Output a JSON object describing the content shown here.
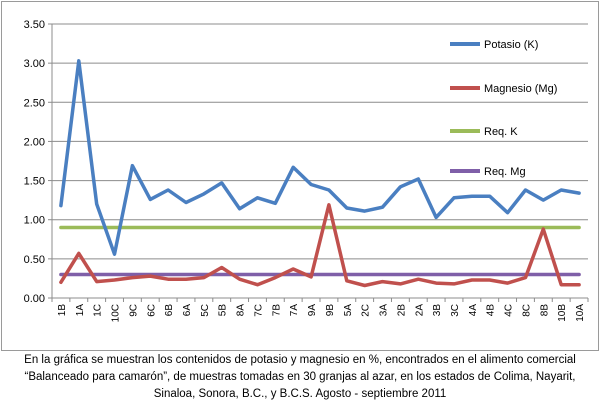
{
  "chart_data": {
    "type": "line",
    "categories": [
      "1B",
      "1A",
      "1C",
      "10C",
      "9C",
      "6C",
      "6B",
      "6A",
      "5C",
      "5B",
      "8A",
      "7C",
      "7B",
      "7A",
      "9A",
      "9B",
      "5A",
      "2C",
      "3A",
      "2B",
      "2A",
      "3B",
      "3C",
      "4A",
      "4B",
      "4C",
      "8C",
      "8B",
      "10B",
      "10A"
    ],
    "series": [
      {
        "name": "Potasio (K)",
        "color": "#4a7fc1",
        "values": [
          1.18,
          3.03,
          1.2,
          0.56,
          1.69,
          1.26,
          1.38,
          1.22,
          1.33,
          1.47,
          1.14,
          1.28,
          1.21,
          1.67,
          1.45,
          1.38,
          1.15,
          1.11,
          1.16,
          1.42,
          1.52,
          1.03,
          1.28,
          1.3,
          1.3,
          1.09,
          1.38,
          1.25,
          1.38,
          1.34
        ]
      },
      {
        "name": "Magnesio (Mg)",
        "color": "#c0504d",
        "values": [
          0.2,
          0.57,
          0.21,
          0.23,
          0.26,
          0.28,
          0.24,
          0.24,
          0.26,
          0.39,
          0.24,
          0.17,
          0.26,
          0.37,
          0.27,
          1.19,
          0.22,
          0.16,
          0.21,
          0.18,
          0.24,
          0.19,
          0.18,
          0.23,
          0.23,
          0.19,
          0.26,
          0.88,
          0.17,
          0.17
        ]
      },
      {
        "name": "Req. K",
        "color": "#9bbb59",
        "values": [
          0.9,
          0.9,
          0.9,
          0.9,
          0.9,
          0.9,
          0.9,
          0.9,
          0.9,
          0.9,
          0.9,
          0.9,
          0.9,
          0.9,
          0.9,
          0.9,
          0.9,
          0.9,
          0.9,
          0.9,
          0.9,
          0.9,
          0.9,
          0.9,
          0.9,
          0.9,
          0.9,
          0.9,
          0.9,
          0.9
        ]
      },
      {
        "name": "Req. Mg",
        "color": "#7f5fa8",
        "values": [
          0.3,
          0.3,
          0.3,
          0.3,
          0.3,
          0.3,
          0.3,
          0.3,
          0.3,
          0.3,
          0.3,
          0.3,
          0.3,
          0.3,
          0.3,
          0.3,
          0.3,
          0.3,
          0.3,
          0.3,
          0.3,
          0.3,
          0.3,
          0.3,
          0.3,
          0.3,
          0.3,
          0.3,
          0.3,
          0.3
        ]
      }
    ],
    "y_ticks": [
      "0.00",
      "0.50",
      "1.00",
      "1.50",
      "2.00",
      "2.50",
      "3.00",
      "3.50"
    ],
    "ylim": [
      0,
      3.5
    ],
    "grid": true,
    "legend_position": "right"
  },
  "caption": {
    "line1": "En la gráfica se muestran los contenidos de potasio y magnesio en %, encontrados en el alimento comercial",
    "line2": "“Balanceado para camarón”, de muestras tomadas en 30 granjas al azar, en los estados de Colima, Nayarit,",
    "line3": "Sinaloa, Sonora, B.C., y B.C.S. Agosto - septiembre 2011"
  }
}
